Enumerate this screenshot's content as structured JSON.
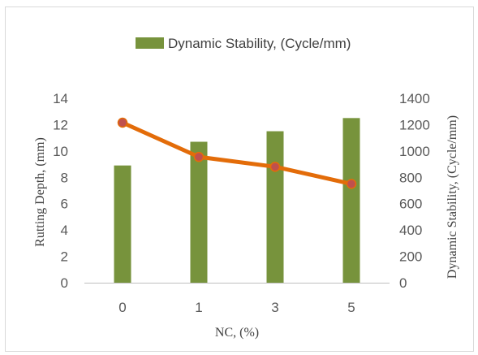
{
  "chart_data": {
    "type": "bar",
    "categories": [
      "0",
      "1",
      "3",
      "5"
    ],
    "series": [
      {
        "name": "Dynamic Stability, (Cycle/mm)",
        "type": "bar",
        "axis": "left",
        "values": [
          8.9,
          10.7,
          11.5,
          12.5
        ],
        "color": "#77933c"
      },
      {
        "name": "",
        "type": "line",
        "axis": "right",
        "values": [
          1215,
          955,
          880,
          750
        ],
        "color": "#e36c09",
        "marker_color": "#c0504d"
      }
    ],
    "xlabel": "NC, (%)",
    "ylabel": "Rutting Depth, (mm)",
    "y2label": "Dynamic Stability, (Cycle/mm)",
    "ylim": [
      0,
      14
    ],
    "y2lim": [
      0,
      1400
    ],
    "yticks": [
      "0",
      "2",
      "4",
      "6",
      "8",
      "10",
      "12",
      "14"
    ],
    "y2ticks": [
      "0",
      "200",
      "400",
      "600",
      "800",
      "1000",
      "1200",
      "1400"
    ],
    "legend_position": "top",
    "grid": false
  }
}
